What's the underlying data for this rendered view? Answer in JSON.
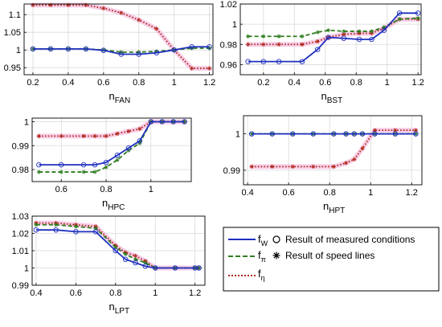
{
  "chart_data": [
    {
      "type": "line",
      "xlabel": "n",
      "xlabel_sub": "FAN",
      "xlim": [
        0.15,
        1.22
      ],
      "ylim": [
        0.93,
        1.13
      ],
      "xticks": [
        0.2,
        0.4,
        0.6,
        0.8,
        1,
        1.2
      ],
      "yticks": [
        0.95,
        1,
        1.05,
        1.1
      ],
      "xtick_labels": [
        "0.2",
        "0.4",
        "0.6",
        "0.8",
        "1",
        "1.2"
      ],
      "ytick_labels": [
        "0.95",
        "1",
        "1.05",
        "1.1"
      ],
      "grid": true,
      "x": [
        0.2,
        0.3,
        0.4,
        0.5,
        0.6,
        0.7,
        0.8,
        0.9,
        1.0,
        1.1,
        1.2
      ],
      "series": [
        {
          "key": "fW",
          "values": [
            1.003,
            1.003,
            1.003,
            1.003,
            0.999,
            0.988,
            0.988,
            0.992,
            1.0,
            1.009,
            1.009
          ]
        },
        {
          "key": "fpi",
          "values": [
            1.003,
            1.003,
            1.003,
            1.003,
            1.0,
            0.994,
            0.994,
            0.996,
            1.0,
            1.005,
            1.005
          ]
        },
        {
          "key": "feta",
          "values": [
            1.127,
            1.127,
            1.127,
            1.127,
            1.118,
            1.105,
            1.085,
            1.06,
            1.0,
            0.948,
            0.948
          ]
        }
      ]
    },
    {
      "type": "line",
      "xlabel": "n",
      "xlabel_sub": "BST",
      "xlim": [
        0.05,
        1.22
      ],
      "ylim": [
        0.95,
        1.02
      ],
      "xticks": [
        0.2,
        0.4,
        0.6,
        0.8,
        1,
        1.2
      ],
      "yticks": [
        0.96,
        0.98,
        1,
        1.02
      ],
      "xtick_labels": [
        "0.2",
        "0.4",
        "0.6",
        "0.8",
        "1",
        "1.2"
      ],
      "ytick_labels": [
        "0.96",
        "0.98",
        "1",
        "1.02"
      ],
      "grid": true,
      "x": [
        0.1,
        0.2,
        0.3,
        0.45,
        0.55,
        0.62,
        0.72,
        0.82,
        0.9,
        0.98,
        1.08,
        1.2
      ],
      "series": [
        {
          "key": "fW",
          "values": [
            0.963,
            0.963,
            0.963,
            0.963,
            0.975,
            0.987,
            0.986,
            0.985,
            0.985,
            0.994,
            1.011,
            1.011
          ]
        },
        {
          "key": "fpi",
          "values": [
            0.988,
            0.988,
            0.988,
            0.988,
            0.992,
            0.994,
            0.993,
            0.993,
            0.993,
            0.997,
            1.005,
            1.006
          ]
        },
        {
          "key": "feta",
          "values": [
            0.98,
            0.98,
            0.98,
            0.98,
            0.983,
            0.987,
            0.99,
            0.991,
            0.991,
            0.996,
            1.005,
            1.005
          ]
        }
      ]
    },
    {
      "type": "line",
      "xlabel": "n",
      "xlabel_sub": "HPC",
      "xlim": [
        0.47,
        1.18
      ],
      "ylim": [
        0.975,
        1.0015
      ],
      "xticks": [
        0.6,
        0.8,
        1
      ],
      "yticks": [
        0.98,
        0.99,
        1
      ],
      "xtick_labels": [
        "0.6",
        "0.8",
        "1"
      ],
      "ytick_labels": [
        "0.98",
        "0.99",
        "1"
      ],
      "grid": true,
      "x": [
        0.5,
        0.6,
        0.7,
        0.75,
        0.8,
        0.85,
        0.9,
        0.95,
        1.0,
        1.05,
        1.1,
        1.15
      ],
      "series": [
        {
          "key": "fW",
          "values": [
            0.982,
            0.982,
            0.982,
            0.982,
            0.983,
            0.986,
            0.989,
            0.992,
            1.0,
            1.0,
            1.0,
            1.0
          ]
        },
        {
          "key": "fpi",
          "values": [
            0.979,
            0.979,
            0.979,
            0.979,
            0.981,
            0.984,
            0.988,
            0.991,
            1.0,
            1.0,
            1.0,
            1.0
          ]
        },
        {
          "key": "feta",
          "values": [
            0.994,
            0.994,
            0.994,
            0.994,
            0.994,
            0.995,
            0.996,
            0.997,
            1.0,
            1.0,
            1.0,
            1.0
          ]
        }
      ]
    },
    {
      "type": "line",
      "xlabel": "n",
      "xlabel_sub": "HPT",
      "xlim": [
        0.38,
        1.25
      ],
      "ylim": [
        0.986,
        1.005
      ],
      "xticks": [
        0.4,
        0.6,
        0.8,
        1,
        1.2
      ],
      "yticks": [
        0.99,
        1
      ],
      "xtick_labels": [
        "0.4",
        "0.6",
        "0.8",
        "1",
        "1.2"
      ],
      "ytick_labels": [
        "0.99",
        "1"
      ],
      "grid": true,
      "x": [
        0.42,
        0.52,
        0.62,
        0.72,
        0.82,
        0.88,
        0.92,
        0.96,
        1.02,
        1.12,
        1.22
      ],
      "series": [
        {
          "key": "fW",
          "values": [
            1.0,
            1.0,
            1.0,
            1.0,
            1.0,
            1.0,
            1.0,
            1.0,
            1.0,
            1.0,
            1.0
          ]
        },
        {
          "key": "fpi",
          "values": [
            1.0,
            1.0,
            1.0,
            1.0,
            1.0,
            1.0,
            1.0,
            1.0,
            1.0,
            1.0,
            1.0
          ]
        },
        {
          "key": "feta",
          "values": [
            0.991,
            0.991,
            0.991,
            0.991,
            0.991,
            0.992,
            0.993,
            0.996,
            1.001,
            1.001,
            1.001
          ]
        }
      ]
    },
    {
      "type": "line",
      "xlabel": "n",
      "xlabel_sub": "LPT",
      "xlim": [
        0.38,
        1.25
      ],
      "ylim": [
        0.99,
        1.03
      ],
      "xticks": [
        0.4,
        0.6,
        0.8,
        1,
        1.2
      ],
      "yticks": [
        0.99,
        1,
        1.01,
        1.02,
        1.03
      ],
      "xtick_labels": [
        "0.4",
        "0.6",
        "0.8",
        "1",
        "1.2"
      ],
      "ytick_labels": [
        "0.99",
        "1",
        "1.01",
        "1.02",
        "1.03"
      ],
      "grid": true,
      "x": [
        0.4,
        0.5,
        0.6,
        0.7,
        0.8,
        0.85,
        0.9,
        0.95,
        1.0,
        1.1,
        1.2,
        1.22
      ],
      "series": [
        {
          "key": "fW",
          "values": [
            1.022,
            1.022,
            1.021,
            1.021,
            1.01,
            1.005,
            1.003,
            1.001,
            1.0,
            1.0,
            1.0,
            1.0
          ]
        },
        {
          "key": "fpi",
          "values": [
            1.025,
            1.025,
            1.024,
            1.023,
            1.012,
            1.008,
            1.005,
            1.003,
            1.0,
            1.0,
            1.0,
            1.0
          ]
        },
        {
          "key": "feta",
          "values": [
            1.026,
            1.026,
            1.025,
            1.024,
            1.013,
            1.009,
            1.007,
            1.004,
            1.0,
            1.0,
            1.0,
            1.0
          ]
        }
      ]
    }
  ],
  "legend": {
    "series": [
      {
        "key": "fW",
        "label": "f",
        "sub": "W",
        "color": "#1f2fbf",
        "dash": "solid"
      },
      {
        "key": "fpi",
        "label": "f",
        "sub": "π",
        "color": "#2e7d1f",
        "dash": "dashed"
      },
      {
        "key": "feta",
        "label": "f",
        "sub": "η",
        "color": "#b0281a",
        "dash": "dotted"
      }
    ],
    "markers": [
      {
        "symbol": "circle",
        "label": "Result of measured conditions"
      },
      {
        "symbol": "asterisk",
        "label": "Result of speed lines"
      }
    ]
  },
  "colors": {
    "fW": "#1f2fbf",
    "fpi": "#2e7d1f",
    "feta": "#b0281a",
    "halo": "#f6c6e4",
    "grid": "#d9d9d9"
  }
}
